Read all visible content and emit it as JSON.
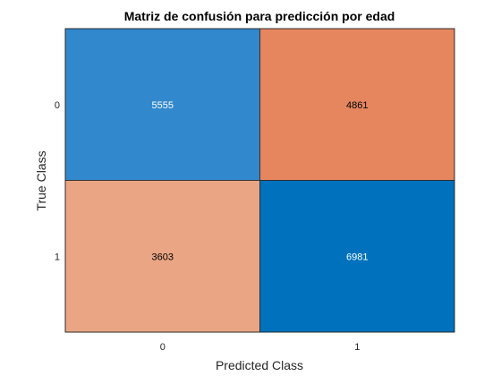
{
  "chart_data": {
    "type": "heatmap",
    "title": "Matriz de confusión para predicción por edad",
    "xlabel": "Predicted Class",
    "ylabel": "True Class",
    "x_categories": [
      "0",
      "1"
    ],
    "y_categories": [
      "0",
      "1"
    ],
    "values": [
      [
        5555,
        4861
      ],
      [
        3603,
        6981
      ]
    ],
    "cell_colors": [
      [
        "#3288cc",
        "#e5865e"
      ],
      [
        "#eaa584",
        "#0072bd"
      ]
    ],
    "cell_text_colors": [
      [
        "#ffffff",
        "#000000"
      ],
      [
        "#000000",
        "#ffffff"
      ]
    ],
    "grid": false,
    "legend": "none"
  }
}
